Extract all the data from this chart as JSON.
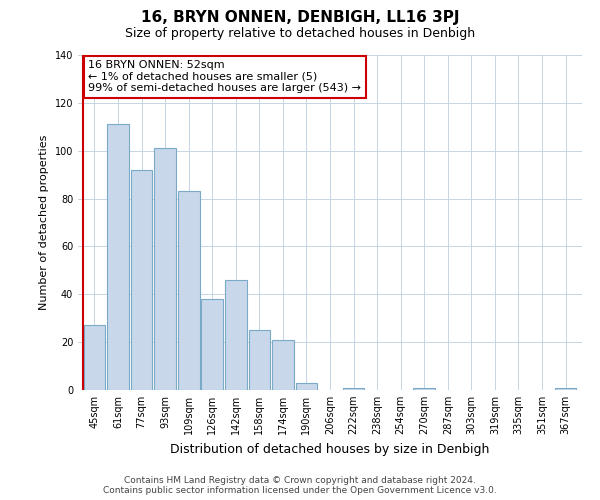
{
  "title": "16, BRYN ONNEN, DENBIGH, LL16 3PJ",
  "subtitle": "Size of property relative to detached houses in Denbigh",
  "xlabel": "Distribution of detached houses by size in Denbigh",
  "ylabel": "Number of detached properties",
  "bar_color": "#c8d8ea",
  "bar_edge_color": "#7aaac8",
  "highlight_color": "#cc0000",
  "bins": [
    "45sqm",
    "61sqm",
    "77sqm",
    "93sqm",
    "109sqm",
    "126sqm",
    "142sqm",
    "158sqm",
    "174sqm",
    "190sqm",
    "206sqm",
    "222sqm",
    "238sqm",
    "254sqm",
    "270sqm",
    "287sqm",
    "303sqm",
    "319sqm",
    "335sqm",
    "351sqm",
    "367sqm"
  ],
  "values": [
    27,
    111,
    92,
    101,
    83,
    38,
    46,
    25,
    21,
    3,
    0,
    1,
    0,
    0,
    1,
    0,
    0,
    0,
    0,
    0,
    1
  ],
  "annotation_line1": "16 BRYN ONNEN: 52sqm",
  "annotation_line2": "← 1% of detached houses are smaller (5)",
  "annotation_line3": "99% of semi-detached houses are larger (543) →",
  "ylim": [
    0,
    140
  ],
  "yticks": [
    0,
    20,
    40,
    60,
    80,
    100,
    120,
    140
  ],
  "footer_line1": "Contains HM Land Registry data © Crown copyright and database right 2024.",
  "footer_line2": "Contains public sector information licensed under the Open Government Licence v3.0."
}
